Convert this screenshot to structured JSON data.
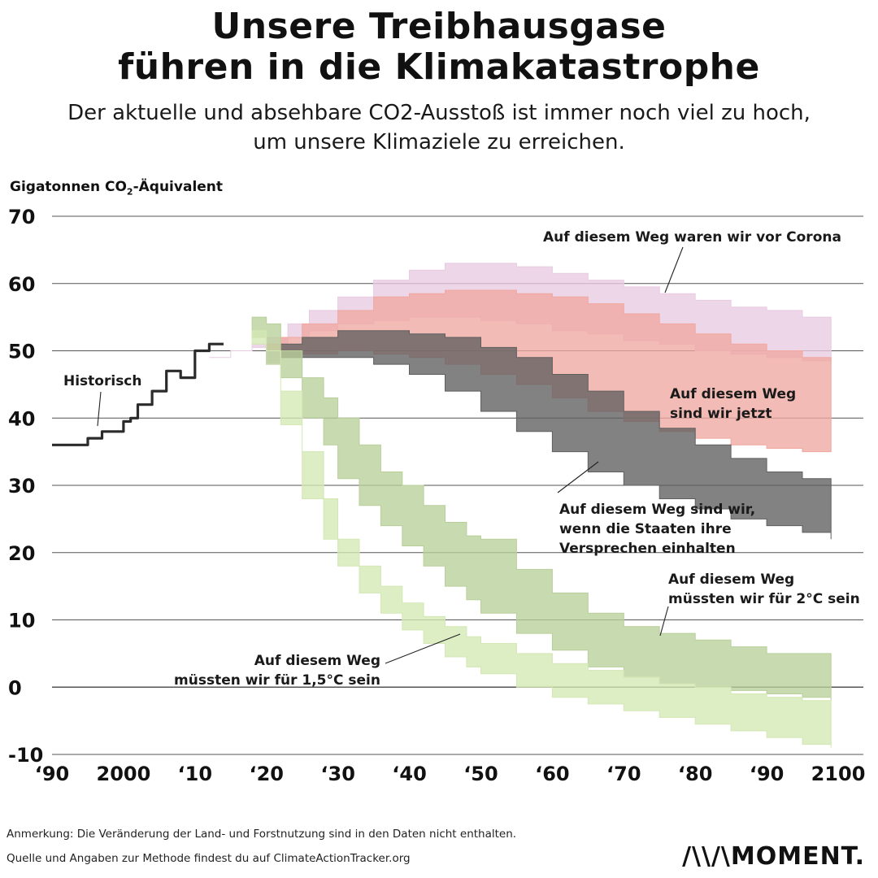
{
  "title": {
    "line1": "Unsere Treibhausgase",
    "line2": "führen in die Klimakatastrophe"
  },
  "subtitle": {
    "line1": "Der aktuelle und absehbare CO2-Ausstoß ist immer noch viel zu hoch,",
    "line2": "um unsere Klimaziele zu erreichen."
  },
  "footer": {
    "note": "Anmerkung: Die Veränderung der Land- und Forstnutzung sind in den Daten nicht enthalten.",
    "source": "Quelle und Angaben zur Methode findest du auf ClimateActionTracker.org",
    "logo": "MOMENT."
  },
  "colors": {
    "historic": "#2b2b2b",
    "pre_corona": "#e8cbe2",
    "current": "#f0a8a0",
    "pledges": "#5f5f5f",
    "two_degree": "#b9cf9a",
    "one_point_five": "#d3e8b4",
    "grid": "#555555"
  },
  "chart_data": {
    "type": "area",
    "title": "",
    "xlabel": "",
    "ylabel_main": "Gigatonnen CO",
    "ylabel_sub": "2",
    "ylabel_rest": "-Äquivalent",
    "xlim": [
      1990,
      2100
    ],
    "ylim": [
      -10,
      70
    ],
    "yticks": [
      70,
      60,
      50,
      40,
      30,
      20,
      10,
      0,
      -10
    ],
    "xticks": [
      {
        "x": 1990,
        "label": "‘90"
      },
      {
        "x": 2000,
        "label": "2000"
      },
      {
        "x": 2010,
        "label": "‘10"
      },
      {
        "x": 2020,
        "label": "‘20"
      },
      {
        "x": 2030,
        "label": "‘30"
      },
      {
        "x": 2040,
        "label": "‘40"
      },
      {
        "x": 2050,
        "label": "‘50"
      },
      {
        "x": 2060,
        "label": "‘60"
      },
      {
        "x": 2070,
        "label": "‘70"
      },
      {
        "x": 2080,
        "label": "‘80"
      },
      {
        "x": 2090,
        "label": "‘90"
      },
      {
        "x": 2100,
        "label": "2100"
      }
    ],
    "grid": true,
    "series": [
      {
        "key": "pre_corona",
        "type": "band",
        "upper": [
          [
            2012,
            49
          ],
          [
            2015,
            50
          ],
          [
            2018,
            51
          ],
          [
            2020,
            52
          ],
          [
            2023,
            54
          ],
          [
            2026,
            56
          ],
          [
            2030,
            58
          ],
          [
            2035,
            60.5
          ],
          [
            2040,
            62
          ],
          [
            2045,
            63
          ],
          [
            2050,
            63
          ],
          [
            2055,
            62.5
          ],
          [
            2060,
            61.5
          ],
          [
            2065,
            60.5
          ],
          [
            2070,
            59.5
          ],
          [
            2075,
            58.5
          ],
          [
            2080,
            57.5
          ],
          [
            2085,
            56.5
          ],
          [
            2090,
            56
          ],
          [
            2095,
            55
          ],
          [
            2099,
            54.5
          ]
        ],
        "lower": [
          [
            2012,
            49
          ],
          [
            2015,
            50
          ],
          [
            2018,
            50.5
          ],
          [
            2020,
            51
          ],
          [
            2023,
            52
          ],
          [
            2026,
            53
          ],
          [
            2030,
            54
          ],
          [
            2035,
            54.5
          ],
          [
            2040,
            55
          ],
          [
            2045,
            55
          ],
          [
            2050,
            54.5
          ],
          [
            2055,
            54
          ],
          [
            2060,
            53
          ],
          [
            2065,
            52.5
          ],
          [
            2070,
            51.5
          ],
          [
            2075,
            51
          ],
          [
            2080,
            50
          ],
          [
            2085,
            49.5
          ],
          [
            2090,
            49
          ],
          [
            2095,
            48.5
          ],
          [
            2099,
            48
          ]
        ]
      },
      {
        "key": "current",
        "type": "band",
        "upper": [
          [
            2020,
            51
          ],
          [
            2022,
            52
          ],
          [
            2025,
            54
          ],
          [
            2030,
            56
          ],
          [
            2035,
            58
          ],
          [
            2040,
            58.5
          ],
          [
            2045,
            59
          ],
          [
            2050,
            59
          ],
          [
            2055,
            58.5
          ],
          [
            2060,
            58
          ],
          [
            2065,
            57
          ],
          [
            2070,
            55.5
          ],
          [
            2075,
            54
          ],
          [
            2080,
            52.5
          ],
          [
            2085,
            51
          ],
          [
            2090,
            50
          ],
          [
            2095,
            49
          ],
          [
            2099,
            48
          ]
        ],
        "lower": [
          [
            2020,
            50
          ],
          [
            2022,
            49
          ],
          [
            2025,
            49.5
          ],
          [
            2030,
            50
          ],
          [
            2035,
            49.5
          ],
          [
            2040,
            49
          ],
          [
            2045,
            48
          ],
          [
            2050,
            46.5
          ],
          [
            2055,
            45
          ],
          [
            2060,
            43
          ],
          [
            2065,
            41
          ],
          [
            2070,
            39.5
          ],
          [
            2075,
            38
          ],
          [
            2080,
            37
          ],
          [
            2085,
            36
          ],
          [
            2090,
            35.5
          ],
          [
            2095,
            35
          ],
          [
            2099,
            35
          ]
        ]
      },
      {
        "key": "pledges",
        "type": "band",
        "upper": [
          [
            2020,
            50
          ],
          [
            2022,
            51
          ],
          [
            2025,
            52
          ],
          [
            2030,
            53
          ],
          [
            2035,
            53
          ],
          [
            2040,
            52.5
          ],
          [
            2045,
            52
          ],
          [
            2050,
            50.5
          ],
          [
            2055,
            49
          ],
          [
            2060,
            46.5
          ],
          [
            2065,
            44
          ],
          [
            2070,
            41
          ],
          [
            2075,
            38.5
          ],
          [
            2080,
            36
          ],
          [
            2085,
            34
          ],
          [
            2090,
            32
          ],
          [
            2095,
            31
          ],
          [
            2099,
            30
          ]
        ],
        "lower": [
          [
            2020,
            48
          ],
          [
            2022,
            49
          ],
          [
            2025,
            49
          ],
          [
            2030,
            49
          ],
          [
            2035,
            48
          ],
          [
            2040,
            46.5
          ],
          [
            2045,
            44
          ],
          [
            2050,
            41
          ],
          [
            2055,
            38
          ],
          [
            2060,
            35
          ],
          [
            2065,
            32
          ],
          [
            2070,
            30
          ],
          [
            2075,
            28
          ],
          [
            2080,
            26.5
          ],
          [
            2085,
            25
          ],
          [
            2090,
            24
          ],
          [
            2095,
            23
          ],
          [
            2099,
            22
          ]
        ]
      },
      {
        "key": "two_degree",
        "type": "band",
        "upper": [
          [
            2018,
            55
          ],
          [
            2020,
            54
          ],
          [
            2022,
            50
          ],
          [
            2025,
            46
          ],
          [
            2028,
            43
          ],
          [
            2030,
            40
          ],
          [
            2033,
            36
          ],
          [
            2036,
            32
          ],
          [
            2039,
            30
          ],
          [
            2042,
            27
          ],
          [
            2045,
            24.5
          ],
          [
            2048,
            22.5
          ],
          [
            2050,
            22
          ],
          [
            2055,
            17.5
          ],
          [
            2060,
            14
          ],
          [
            2065,
            11
          ],
          [
            2070,
            9
          ],
          [
            2075,
            8
          ],
          [
            2080,
            7
          ],
          [
            2085,
            6
          ],
          [
            2090,
            5
          ],
          [
            2095,
            5
          ],
          [
            2099,
            4
          ]
        ],
        "lower": [
          [
            2018,
            52
          ],
          [
            2020,
            50
          ],
          [
            2022,
            46
          ],
          [
            2025,
            40
          ],
          [
            2028,
            36
          ],
          [
            2030,
            31
          ],
          [
            2033,
            27
          ],
          [
            2036,
            24
          ],
          [
            2039,
            21
          ],
          [
            2042,
            18
          ],
          [
            2045,
            15
          ],
          [
            2048,
            13
          ],
          [
            2050,
            11
          ],
          [
            2055,
            8
          ],
          [
            2060,
            5.5
          ],
          [
            2065,
            3
          ],
          [
            2070,
            1.5
          ],
          [
            2075,
            0.5
          ],
          [
            2080,
            0
          ],
          [
            2085,
            -0.5
          ],
          [
            2090,
            -1
          ],
          [
            2095,
            -1.5
          ],
          [
            2099,
            -2
          ]
        ]
      },
      {
        "key": "one_point_five",
        "type": "band",
        "upper": [
          [
            2018,
            53
          ],
          [
            2020,
            50
          ],
          [
            2022,
            44
          ],
          [
            2025,
            35
          ],
          [
            2028,
            28
          ],
          [
            2030,
            22
          ],
          [
            2033,
            18
          ],
          [
            2036,
            15
          ],
          [
            2039,
            12.5
          ],
          [
            2042,
            10.5
          ],
          [
            2045,
            9
          ],
          [
            2048,
            7.5
          ],
          [
            2050,
            6.5
          ],
          [
            2055,
            5
          ],
          [
            2060,
            3.5
          ],
          [
            2065,
            2.5
          ],
          [
            2070,
            1.5
          ],
          [
            2075,
            0.5
          ],
          [
            2080,
            0
          ],
          [
            2085,
            -1
          ],
          [
            2090,
            -1.5
          ],
          [
            2095,
            -2
          ],
          [
            2099,
            -4
          ]
        ],
        "lower": [
          [
            2018,
            51
          ],
          [
            2020,
            48
          ],
          [
            2022,
            39
          ],
          [
            2025,
            28
          ],
          [
            2028,
            22
          ],
          [
            2030,
            18
          ],
          [
            2033,
            14
          ],
          [
            2036,
            11
          ],
          [
            2039,
            8.5
          ],
          [
            2042,
            6.5
          ],
          [
            2045,
            4.5
          ],
          [
            2048,
            3
          ],
          [
            2050,
            2
          ],
          [
            2055,
            0
          ],
          [
            2060,
            -1.5
          ],
          [
            2065,
            -2.5
          ],
          [
            2070,
            -3.5
          ],
          [
            2075,
            -4.5
          ],
          [
            2080,
            -5.5
          ],
          [
            2085,
            -6.5
          ],
          [
            2090,
            -7.5
          ],
          [
            2095,
            -8.5
          ],
          [
            2099,
            -9
          ]
        ]
      },
      {
        "key": "historic",
        "type": "line",
        "values": [
          [
            1990,
            36
          ],
          [
            1994,
            36
          ],
          [
            1995,
            37
          ],
          [
            1997,
            38
          ],
          [
            1999,
            38
          ],
          [
            2000,
            39.5
          ],
          [
            2001,
            40
          ],
          [
            2002,
            42
          ],
          [
            2004,
            44
          ],
          [
            2006,
            47
          ],
          [
            2008,
            46
          ],
          [
            2010,
            50
          ],
          [
            2012,
            51
          ],
          [
            2014,
            51
          ]
        ]
      }
    ],
    "annotations": [
      {
        "key": "historisch",
        "lines": [
          "Historisch"
        ]
      },
      {
        "key": "pre_corona",
        "lines": [
          "Auf diesem Weg waren wir vor Corona"
        ]
      },
      {
        "key": "current",
        "lines": [
          "Auf diesem Weg",
          "sind wir jetzt"
        ]
      },
      {
        "key": "pledges",
        "lines": [
          "Auf diesem Weg sind wir,",
          "wenn die Staaten ihre",
          "Versprechen einhalten"
        ]
      },
      {
        "key": "two_degree",
        "lines": [
          "Auf diesem Weg",
          "müssten wir für 2°C sein"
        ]
      },
      {
        "key": "one_point_five",
        "lines": [
          "Auf diesem Weg",
          "müssten wir für 1,5°C sein"
        ]
      }
    ]
  }
}
